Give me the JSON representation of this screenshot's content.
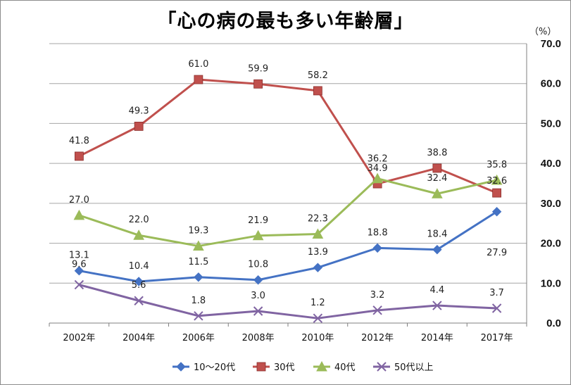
{
  "chart_data": {
    "type": "line",
    "title": "「心の病の最も多い年齢層」",
    "unit": "（%）",
    "categories": [
      "2002年",
      "2004年",
      "2006年",
      "2008年",
      "2010年",
      "2012年",
      "2014年",
      "2017年"
    ],
    "y_ticks": [
      "0.0",
      "10.0",
      "20.0",
      "30.0",
      "40.0",
      "50.0",
      "60.0",
      "70.0"
    ],
    "ylim": [
      0,
      70
    ],
    "grid": "horizontal",
    "legend_position": "bottom",
    "series": [
      {
        "name": "10～20代",
        "color": "#4472c4",
        "marker": "diamond",
        "values": [
          13.1,
          10.4,
          11.5,
          10.8,
          13.9,
          18.8,
          18.4,
          27.9
        ],
        "labels": [
          "13.1",
          "10.4",
          "11.5",
          "10.8",
          "13.9",
          "18.8",
          "18.4",
          "27.9"
        ]
      },
      {
        "name": "30代",
        "color": "#c0504d",
        "marker": "square",
        "values": [
          41.8,
          49.3,
          61.0,
          59.9,
          58.2,
          34.9,
          38.8,
          32.6
        ],
        "labels": [
          "41.8",
          "49.3",
          "61.0",
          "59.9",
          "58.2",
          "34.9",
          "38.8",
          "32.6"
        ]
      },
      {
        "name": "40代",
        "color": "#9bbb59",
        "marker": "triangle",
        "values": [
          27.0,
          22.0,
          19.3,
          21.9,
          22.3,
          36.2,
          32.4,
          35.8
        ],
        "labels": [
          "27.0",
          "22.0",
          "19.3",
          "21.9",
          "22.3",
          "36.2",
          "32.4",
          "35.8"
        ]
      },
      {
        "name": "50代以上",
        "color": "#8064a2",
        "marker": "x",
        "values": [
          9.6,
          5.6,
          1.8,
          3.0,
          1.2,
          3.2,
          4.4,
          3.7
        ],
        "labels": [
          "9.6",
          "5.6",
          "1.8",
          "3.0",
          "1.2",
          "3.2",
          "4.4",
          "3.7"
        ]
      }
    ]
  }
}
